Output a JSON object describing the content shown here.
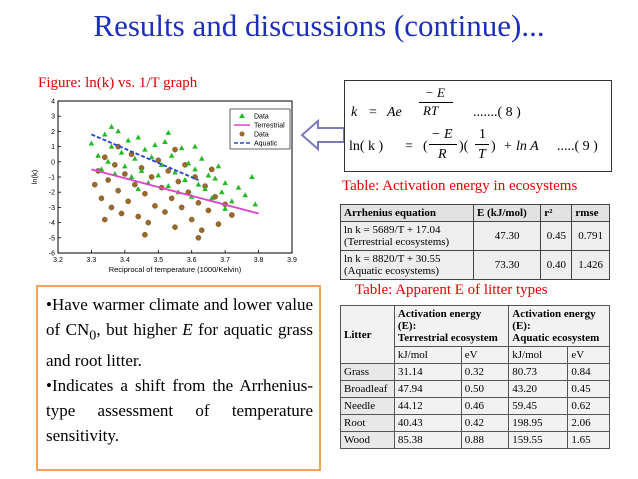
{
  "title": "Results and discussions (continue)...",
  "figure_caption": "Figure: ln(k) vs. 1/T graph",
  "equations": {
    "eq1": {
      "lhs": "k",
      "eq": "=",
      "A": "Ae",
      "exp_num": "− E",
      "exp_den": "RT",
      "ref": ".......(   8 )"
    },
    "eq2": {
      "lhs": "ln(  k  )",
      "eq": "=",
      "open": "(",
      "num1": "− E",
      "den1": "R",
      "mid": ")(",
      "num2": "1",
      "den2": "T",
      "close": ")",
      "tail": "+  ln  A",
      "ref": ".....(   9 )"
    }
  },
  "table1_caption": "Table: Activation energy in ecosystems",
  "table1": {
    "headers": [
      "Arrhenius equation",
      "E (kJ/mol)",
      "r²",
      "rmse"
    ],
    "rows": [
      {
        "eq": "ln k = 5689/T + 17.04",
        "note": "(Terrestrial ecosystems)",
        "E": "47.30",
        "r2": "0.45",
        "rmse": "0.791"
      },
      {
        "eq": "ln k = 8820/T + 30.55",
        "note": "(Aquatic ecosystems)",
        "E": "73.30",
        "r2": "0.40",
        "rmse": "1.426"
      }
    ]
  },
  "table2_caption": "Table: Apparent E of litter types",
  "table2": {
    "litter_header": "Litter",
    "group1": {
      "line1": "Activation      energy",
      "line2": "(E):",
      "line3": "Terrestrial ecosystem"
    },
    "group2": {
      "line1": "Activation      energy",
      "line2": "(E):",
      "line3": "Aquatic ecosystem"
    },
    "units": [
      "kJ/mol",
      "eV",
      "kJ/mol",
      "eV"
    ],
    "rows": [
      [
        "Grass",
        "31.14",
        "0.32",
        "80.73",
        "0.84"
      ],
      [
        "Broadleaf",
        "47.94",
        "0.50",
        "43.20",
        "0.45"
      ],
      [
        "Needle",
        "44.12",
        "0.46",
        "59.45",
        "0.62"
      ],
      [
        "Root",
        "40.43",
        "0.42",
        "198.95",
        "2.06"
      ],
      [
        "Wood",
        "85.38",
        "0.88",
        "159.55",
        "1.65"
      ]
    ]
  },
  "bullets": {
    "b1_a": "•Have   warmer   climate   and lower value of  CN",
    "b1_sub": "0",
    "b1_b": ", but higher ",
    "b1_E": "E",
    "b1_c": " for aquatic grass and root litter.",
    "b2": "•Indicates  a  shift  from  the Arrhenius-type  assessment  of temperature sensitivity."
  },
  "chart_data": {
    "type": "scatter",
    "xlabel": "Reciprocal of temperature (1000/Kelvin)",
    "ylabel": "ln(k)",
    "xlim": [
      3.2,
      3.9
    ],
    "ylim": [
      -6,
      4
    ],
    "xticks": [
      "3.2",
      "3.3",
      "3.4",
      "3.5",
      "3.6",
      "3.7",
      "3.8",
      "3.9"
    ],
    "yticks": [
      "4",
      "3",
      "2",
      "1",
      "0",
      "-1",
      "-2",
      "-3",
      "-4",
      "-5",
      "-6"
    ],
    "legend": [
      "Data",
      "Terrestrial",
      "Data",
      "Aquatic"
    ],
    "legend_position": "top-right",
    "colors": {
      "terrestrial_points": "#22bb22",
      "terrestrial_line": "#dd44cc",
      "aquatic_points": "#9a6a2a",
      "aquatic_line": "#2244dd"
    },
    "series": [
      {
        "name": "Data",
        "kind": "points",
        "marker": "triangle",
        "points": [
          [
            3.3,
            1.2
          ],
          [
            3.32,
            0.4
          ],
          [
            3.33,
            -0.5
          ],
          [
            3.34,
            1.8
          ],
          [
            3.35,
            0.0
          ],
          [
            3.36,
            1.0
          ],
          [
            3.37,
            -0.8
          ],
          [
            3.38,
            2.0
          ],
          [
            3.39,
            0.6
          ],
          [
            3.4,
            -0.3
          ],
          [
            3.41,
            1.4
          ],
          [
            3.42,
            -1.0
          ],
          [
            3.43,
            0.2
          ],
          [
            3.44,
            1.6
          ],
          [
            3.45,
            -0.6
          ],
          [
            3.46,
            0.8
          ],
          [
            3.47,
            -1.4
          ],
          [
            3.48,
            0.3
          ],
          [
            3.49,
            1.1
          ],
          [
            3.5,
            -0.9
          ],
          [
            3.51,
            -0.2
          ],
          [
            3.52,
            1.3
          ],
          [
            3.53,
            -1.6
          ],
          [
            3.54,
            0.4
          ],
          [
            3.55,
            -0.7
          ],
          [
            3.56,
            -2.0
          ],
          [
            3.57,
            0.9
          ],
          [
            3.58,
            -1.2
          ],
          [
            3.59,
            -0.1
          ],
          [
            3.6,
            -2.3
          ],
          [
            3.61,
            -0.5
          ],
          [
            3.62,
            -1.5
          ],
          [
            3.63,
            0.2
          ],
          [
            3.64,
            -1.8
          ],
          [
            3.65,
            -0.9
          ],
          [
            3.66,
            -2.4
          ],
          [
            3.67,
            -1.1
          ],
          [
            3.68,
            -0.3
          ],
          [
            3.69,
            -2.0
          ],
          [
            3.7,
            -1.4
          ],
          [
            3.72,
            -2.6
          ],
          [
            3.74,
            -1.7
          ],
          [
            3.76,
            -2.2
          ],
          [
            3.78,
            -1.0
          ],
          [
            3.79,
            -2.8
          ],
          [
            3.36,
            2.3
          ],
          [
            3.44,
            -1.8
          ],
          [
            3.53,
            1.9
          ],
          [
            3.61,
            1.0
          ],
          [
            3.7,
            -3.1
          ]
        ]
      },
      {
        "name": "Terrestrial",
        "kind": "line",
        "points": [
          [
            3.3,
            -0.5
          ],
          [
            3.8,
            -3.4
          ]
        ]
      },
      {
        "name": "Data",
        "kind": "points",
        "marker": "circle",
        "points": [
          [
            3.31,
            -1.5
          ],
          [
            3.32,
            -0.6
          ],
          [
            3.33,
            -2.4
          ],
          [
            3.34,
            0.3
          ],
          [
            3.35,
            -1.2
          ],
          [
            3.36,
            -3.0
          ],
          [
            3.37,
            -0.2
          ],
          [
            3.38,
            -1.9
          ],
          [
            3.39,
            -3.4
          ],
          [
            3.4,
            -0.8
          ],
          [
            3.41,
            -2.6
          ],
          [
            3.42,
            0.5
          ],
          [
            3.43,
            -1.5
          ],
          [
            3.44,
            -3.6
          ],
          [
            3.45,
            -0.4
          ],
          [
            3.46,
            -2.1
          ],
          [
            3.47,
            -4.0
          ],
          [
            3.48,
            -1.0
          ],
          [
            3.49,
            -2.9
          ],
          [
            3.5,
            0.1
          ],
          [
            3.51,
            -1.7
          ],
          [
            3.52,
            -3.3
          ],
          [
            3.53,
            -0.6
          ],
          [
            3.54,
            -2.4
          ],
          [
            3.55,
            -4.3
          ],
          [
            3.56,
            -1.3
          ],
          [
            3.57,
            -3.0
          ],
          [
            3.58,
            -0.2
          ],
          [
            3.59,
            -2.0
          ],
          [
            3.6,
            -3.8
          ],
          [
            3.61,
            -1.0
          ],
          [
            3.62,
            -2.7
          ],
          [
            3.63,
            -4.5
          ],
          [
            3.64,
            -1.6
          ],
          [
            3.65,
            -3.2
          ],
          [
            3.66,
            -0.5
          ],
          [
            3.67,
            -2.3
          ],
          [
            3.68,
            -4.1
          ],
          [
            3.7,
            -2.8
          ],
          [
            3.72,
            -3.5
          ],
          [
            3.38,
            1.0
          ],
          [
            3.46,
            -4.8
          ],
          [
            3.55,
            0.8
          ],
          [
            3.62,
            -5.0
          ],
          [
            3.34,
            -3.8
          ]
        ]
      },
      {
        "name": "Aquatic",
        "kind": "line",
        "points": [
          [
            3.3,
            1.8
          ],
          [
            3.62,
            -1.2
          ]
        ]
      }
    ]
  }
}
